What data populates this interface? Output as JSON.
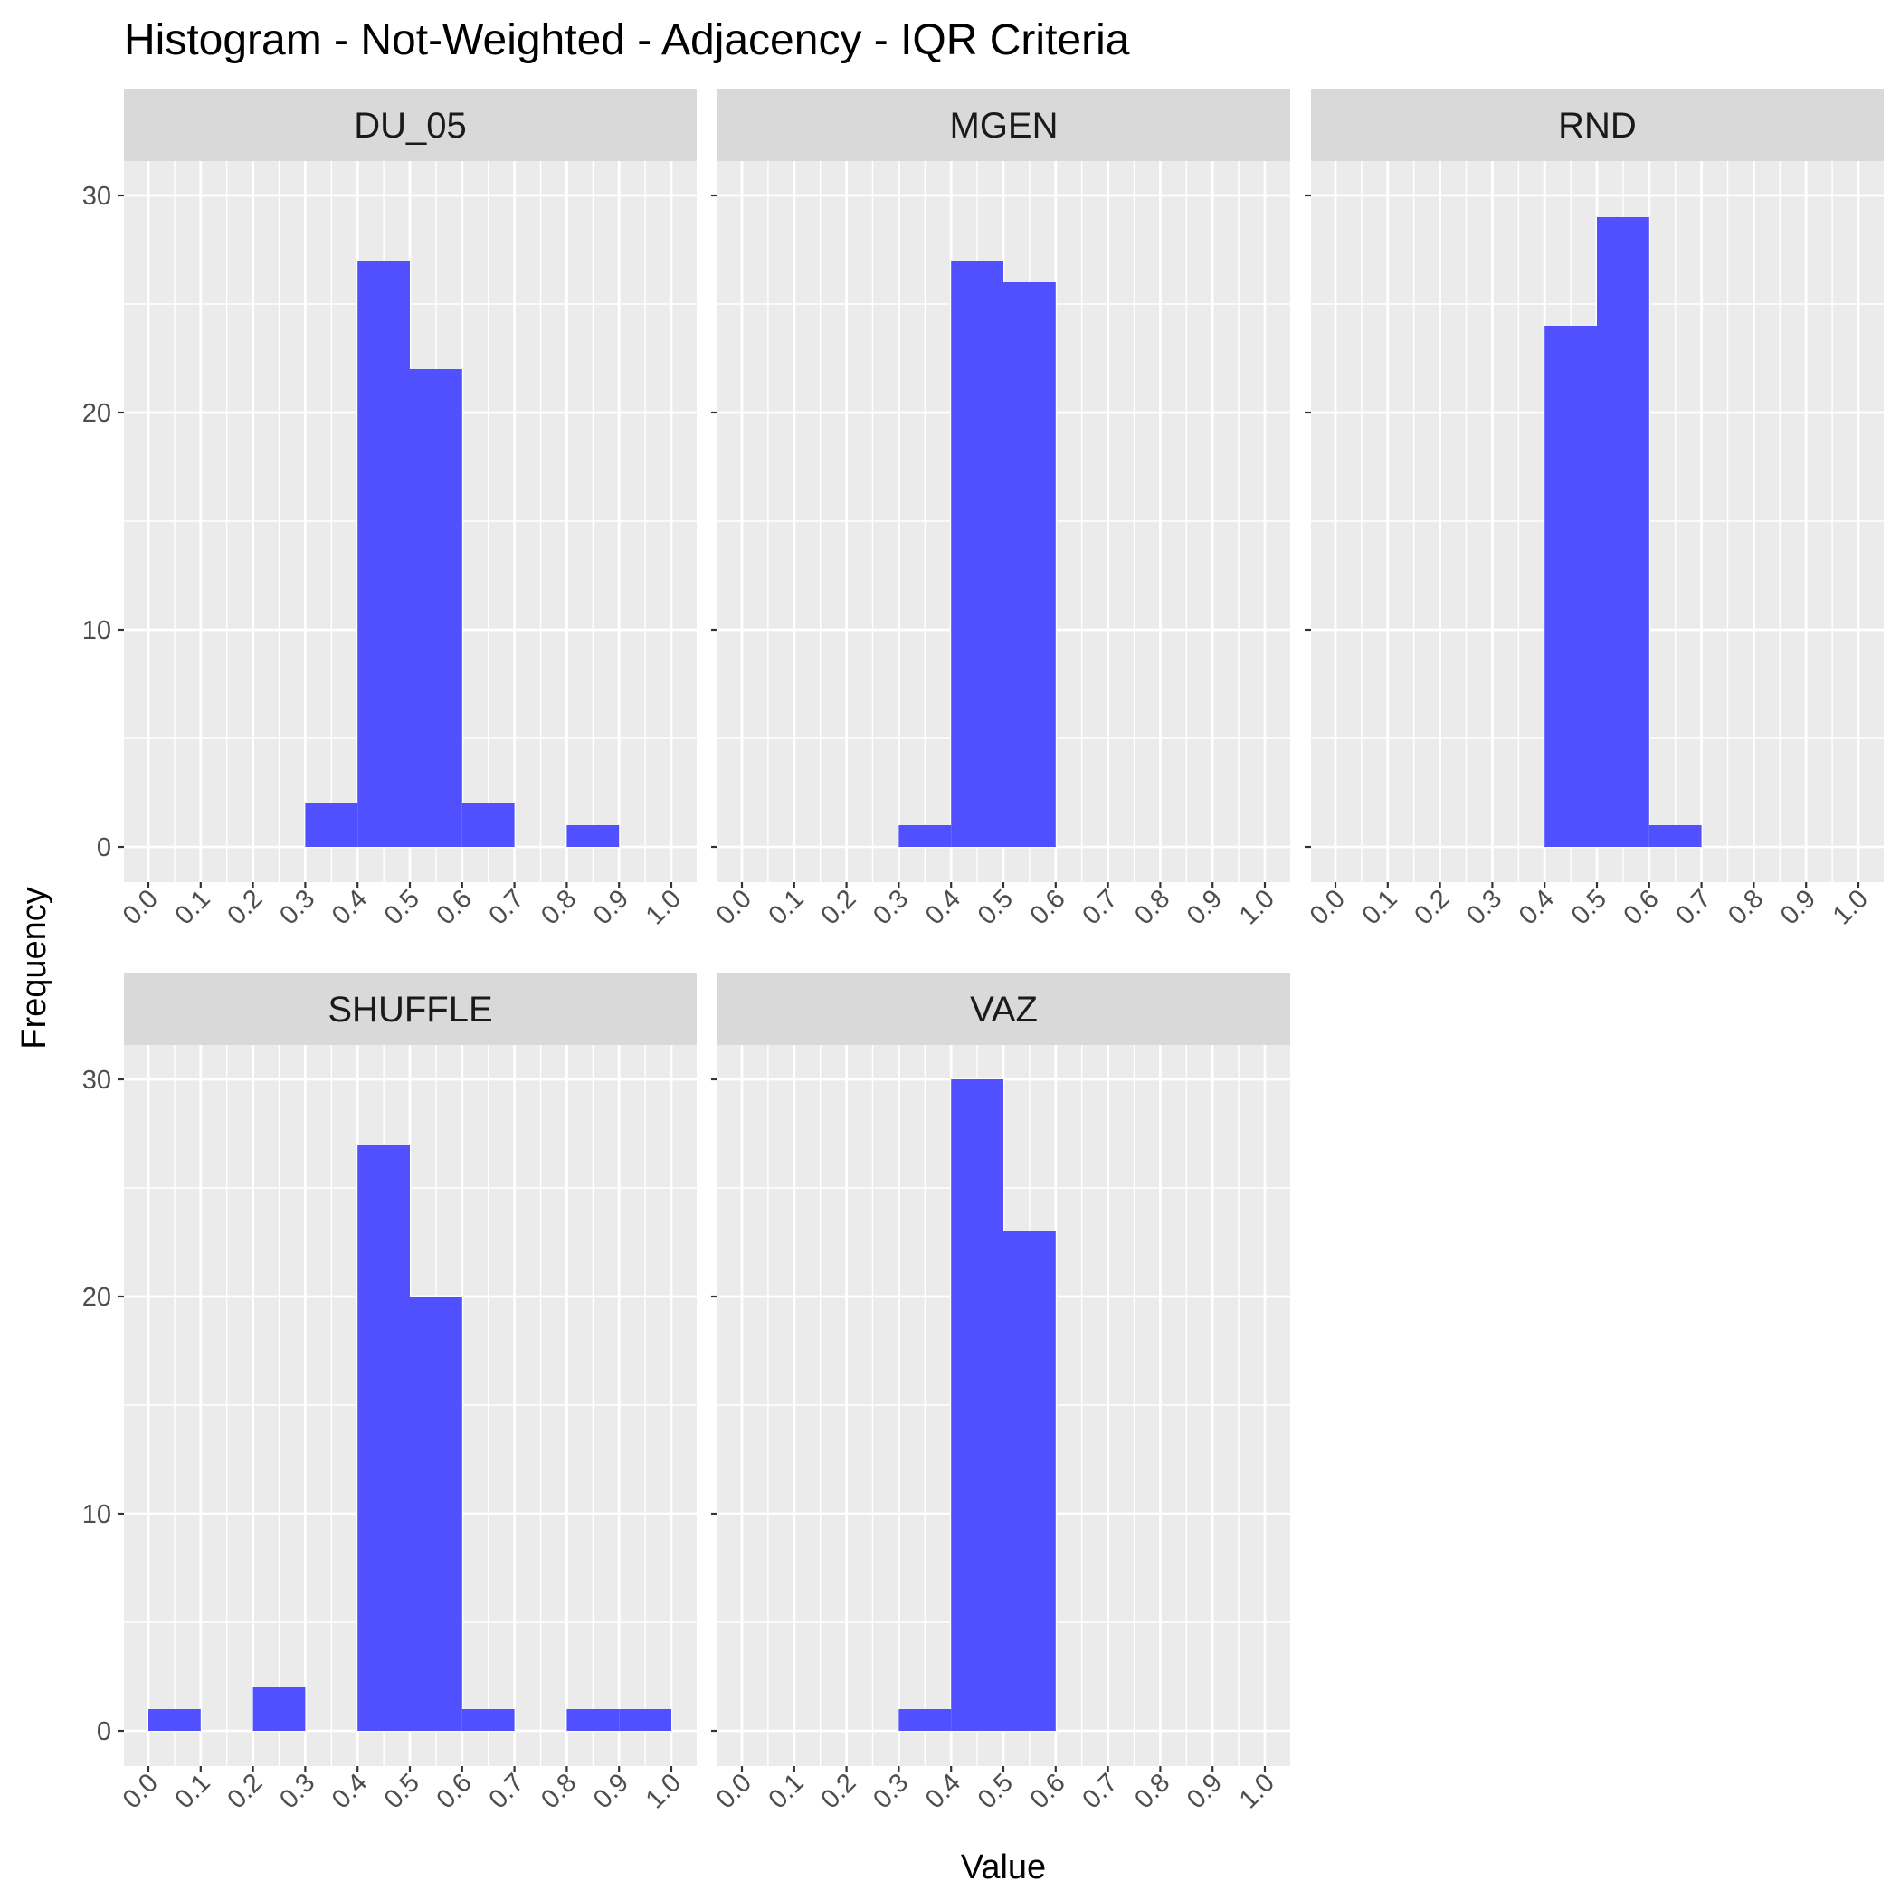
{
  "chart_data": {
    "type": "bar",
    "title": "Histogram - Not-Weighted - Adjacency - IQR Criteria",
    "xlabel": "Value",
    "ylabel": "Frequency",
    "xlim": [
      0,
      1
    ],
    "ylim": [
      0,
      30
    ],
    "x_ticks": [
      "0.0",
      "0.1",
      "0.2",
      "0.3",
      "0.4",
      "0.5",
      "0.6",
      "0.7",
      "0.8",
      "0.9",
      "1.0"
    ],
    "y_ticks": [
      "0",
      "10",
      "20",
      "30"
    ],
    "bin_edges": [
      0,
      0.1,
      0.2,
      0.3,
      0.4,
      0.5,
      0.6,
      0.7,
      0.8,
      0.9,
      1.0
    ],
    "bar_color": "#5050FF",
    "panel_background": "#EBEBEB",
    "strip_background": "#D9D9D9",
    "grid": true,
    "facets": [
      {
        "name": "DU_05",
        "values": [
          0,
          0,
          0,
          2,
          27,
          22,
          2,
          0,
          1,
          0
        ]
      },
      {
        "name": "MGEN",
        "values": [
          0,
          0,
          0,
          1,
          27,
          26,
          0,
          0,
          0,
          0
        ]
      },
      {
        "name": "RND",
        "values": [
          0,
          0,
          0,
          0,
          24,
          29,
          1,
          0,
          0,
          0
        ]
      },
      {
        "name": "SHUFFLE",
        "values": [
          1,
          0,
          2,
          0,
          27,
          20,
          1,
          0,
          1,
          1
        ]
      },
      {
        "name": "VAZ",
        "values": [
          0,
          0,
          0,
          1,
          30,
          23,
          0,
          0,
          0,
          0
        ]
      }
    ]
  }
}
